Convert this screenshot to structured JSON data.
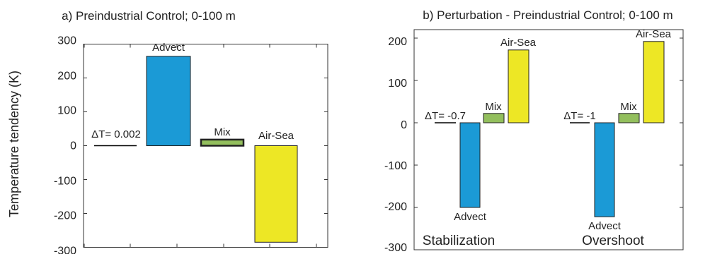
{
  "chart_data": [
    {
      "type": "bar",
      "title": "a) Preindustrial Control; 0-100 m",
      "ylabel": "Temperature tendency (K)",
      "ylim": [
        -300,
        300
      ],
      "yticks": [
        300,
        200,
        100,
        0,
        -100,
        -200,
        -300
      ],
      "grid": false,
      "groups": [
        {
          "label": "",
          "bars": [
            {
              "name": "ΔT= 0.002",
              "value": 0.002,
              "color": "#000000",
              "kind": "line"
            },
            {
              "name": "Advect",
              "value": 264,
              "color": "#1b9ad6",
              "kind": "bar"
            },
            {
              "name": "Mix",
              "value": 18,
              "color": "#93bf5d",
              "kind": "bar"
            },
            {
              "name": "Air-Sea",
              "value": -285,
              "color": "#ede725",
              "kind": "bar"
            }
          ]
        }
      ]
    },
    {
      "type": "bar",
      "title": "b) Perturbation - Preindustrial Control; 0-100 m",
      "ylabel": "",
      "ylim": [
        -300,
        220
      ],
      "yticks": [
        200,
        100,
        0,
        -100,
        -200,
        -300
      ],
      "grid": false,
      "groups": [
        {
          "label": "Stabilization",
          "bars": [
            {
              "name": "ΔT= -0.7",
              "value": -0.7,
              "color": "#000000",
              "kind": "line"
            },
            {
              "name": "Advect",
              "value": -200,
              "color": "#1b9ad6",
              "kind": "bar"
            },
            {
              "name": "Mix",
              "value": 22,
              "color": "#93bf5d",
              "kind": "bar"
            },
            {
              "name": "Air-Sea",
              "value": 172,
              "color": "#ede725",
              "kind": "bar"
            }
          ]
        },
        {
          "label": "Overshoot",
          "bars": [
            {
              "name": "ΔT= -1",
              "value": -1,
              "color": "#000000",
              "kind": "line"
            },
            {
              "name": "Advect",
              "value": -222,
              "color": "#1b9ad6",
              "kind": "bar"
            },
            {
              "name": "Mix",
              "value": 22,
              "color": "#93bf5d",
              "kind": "bar"
            },
            {
              "name": "Air-Sea",
              "value": 192,
              "color": "#ede725",
              "kind": "bar"
            }
          ]
        }
      ]
    }
  ]
}
